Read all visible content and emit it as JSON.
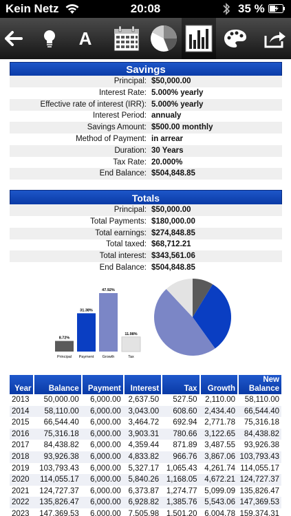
{
  "status_bar": {
    "carrier": "Kein Netz",
    "time": "20:08",
    "battery": "35 %"
  },
  "toolbar": {
    "buttons": [
      "back-arrow-icon",
      "lightbulb-icon",
      "text-font-icon",
      "calendar-icon",
      "pie-chart-icon",
      "bar-chart-icon",
      "palette-icon",
      "share-icon"
    ],
    "selected": "bar-chart-icon"
  },
  "savings": {
    "title": "Savings",
    "rows": [
      {
        "label": "Principal:",
        "value": "$50,000.00"
      },
      {
        "label": "Interest Rate:",
        "value": "5.000% yearly"
      },
      {
        "label": "Effective rate of interest (IRR):",
        "value": "5.000% yearly"
      },
      {
        "label": "Interest Period:",
        "value": "annualy"
      },
      {
        "label": "Savings Amount:",
        "value": "$500.00 monthly"
      },
      {
        "label": "Method of Payment:",
        "value": "in arrear"
      },
      {
        "label": "Duration:",
        "value": "30 Years"
      },
      {
        "label": "Tax Rate:",
        "value": "20.000%"
      },
      {
        "label": "End Balance:",
        "value": "$504,848.85"
      }
    ]
  },
  "totals": {
    "title": "Totals",
    "rows": [
      {
        "label": "Principal:",
        "value": "$50,000.00"
      },
      {
        "label": "Total Payments:",
        "value": "$180,000.00"
      },
      {
        "label": "Total earnings:",
        "value": "$274,848.85"
      },
      {
        "label": "Total taxed:",
        "value": "$68,712.21"
      },
      {
        "label": "Total interest:",
        "value": "$343,561.06"
      },
      {
        "label": "End Balance:",
        "value": "$504,848.85"
      }
    ]
  },
  "chart_data": [
    {
      "type": "bar",
      "categories": [
        "Principal",
        "Payment",
        "Growth",
        "Tax"
      ],
      "values": [
        8.72,
        31.38,
        47.92,
        11.98
      ],
      "labels": [
        "8.72%",
        "31.38%",
        "47.92%",
        "11.98%"
      ],
      "colors": [
        "#5a5a5a",
        "#0a3ec2",
        "#7b86c6",
        "#e3e3e3"
      ]
    },
    {
      "type": "pie",
      "categories": [
        "Principal",
        "Payment",
        "Growth",
        "Tax"
      ],
      "values": [
        8.72,
        31.38,
        47.92,
        11.98
      ],
      "colors": [
        "#5a5a5a",
        "#0a3ec2",
        "#7b86c6",
        "#e3e3e3"
      ]
    }
  ],
  "table": {
    "headers": [
      "Year",
      "Balance",
      "Payment",
      "Interest",
      "Tax",
      "Growth",
      "New Balance"
    ],
    "rows": [
      [
        "2013",
        "50,000.00",
        "6,000.00",
        "2,637.50",
        "527.50",
        "2,110.00",
        "58,110.00"
      ],
      [
        "2014",
        "58,110.00",
        "6,000.00",
        "3,043.00",
        "608.60",
        "2,434.40",
        "66,544.40"
      ],
      [
        "2015",
        "66,544.40",
        "6,000.00",
        "3,464.72",
        "692.94",
        "2,771.78",
        "75,316.18"
      ],
      [
        "2016",
        "75,316.18",
        "6,000.00",
        "3,903.31",
        "780.66",
        "3,122.65",
        "84,438.82"
      ],
      [
        "2017",
        "84,438.82",
        "6,000.00",
        "4,359.44",
        "871.89",
        "3,487.55",
        "93,926.38"
      ],
      [
        "2018",
        "93,926.38",
        "6,000.00",
        "4,833.82",
        "966.76",
        "3,867.06",
        "103,793.43"
      ],
      [
        "2019",
        "103,793.43",
        "6,000.00",
        "5,327.17",
        "1,065.43",
        "4,261.74",
        "114,055.17"
      ],
      [
        "2020",
        "114,055.17",
        "6,000.00",
        "5,840.26",
        "1,168.05",
        "4,672.21",
        "124,727.37"
      ],
      [
        "2021",
        "124,727.37",
        "6,000.00",
        "6,373.87",
        "1,274.77",
        "5,099.09",
        "135,826.47"
      ],
      [
        "2022",
        "135,826.47",
        "6,000.00",
        "6,928.82",
        "1,385.76",
        "5,543.06",
        "147,369.53"
      ],
      [
        "2023",
        "147,369.53",
        "6,000.00",
        "7,505.98",
        "1,501.20",
        "6,004.78",
        "159,374.31"
      ]
    ]
  }
}
